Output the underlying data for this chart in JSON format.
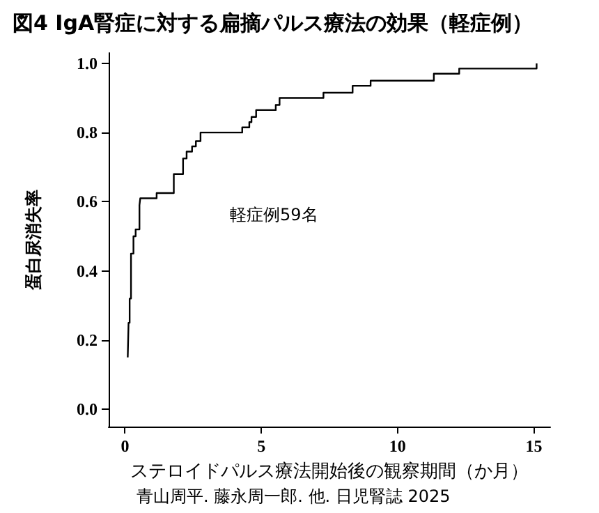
{
  "chart_data": {
    "type": "step",
    "title": "図4 IgA腎症に対する扁摘パルス療法の効果（軽症例）",
    "xlabel": "ステロイドパルス療法開始後の観察期間（か月）",
    "ylabel": "蛋白尿消失率",
    "annotations": [
      "軽症例59名",
      "青山周平. 藤永周一郎. 他. 日児腎誌 2025"
    ],
    "series": [
      {
        "color": "#000000",
        "x": [
          0.1,
          0.13,
          0.17,
          0.22,
          0.31,
          0.39,
          0.53,
          0.56,
          1.16,
          1.79,
          2.13,
          2.26,
          2.46,
          2.6,
          2.77,
          4.3,
          4.56,
          4.64,
          4.81,
          5.53,
          5.67,
          7.28,
          8.35,
          9.01,
          11.33,
          12.26,
          15.1
        ],
        "values": [
          0.15,
          0.25,
          0.32,
          0.45,
          0.5,
          0.52,
          0.59,
          0.61,
          0.625,
          0.68,
          0.725,
          0.745,
          0.76,
          0.775,
          0.8,
          0.815,
          0.83,
          0.845,
          0.865,
          0.88,
          0.9,
          0.915,
          0.935,
          0.95,
          0.97,
          0.985,
          1.0
        ]
      }
    ],
    "xlim": [
      -0.6,
      15.6
    ],
    "xticks": [
      0,
      5,
      10,
      15
    ],
    "ylim": [
      -0.05,
      1.03
    ],
    "yticks": [
      {
        "value": 0,
        "label": "0.0"
      },
      {
        "value": 0.2,
        "label": "0.2"
      },
      {
        "value": 0.4,
        "label": "0.4"
      },
      {
        "value": 0.6,
        "label": "0.6"
      },
      {
        "value": 0.8,
        "label": "0.8"
      },
      {
        "value": 1,
        "label": "1.0"
      }
    ],
    "grid": false,
    "marker": "none",
    "line_style": "solid"
  }
}
